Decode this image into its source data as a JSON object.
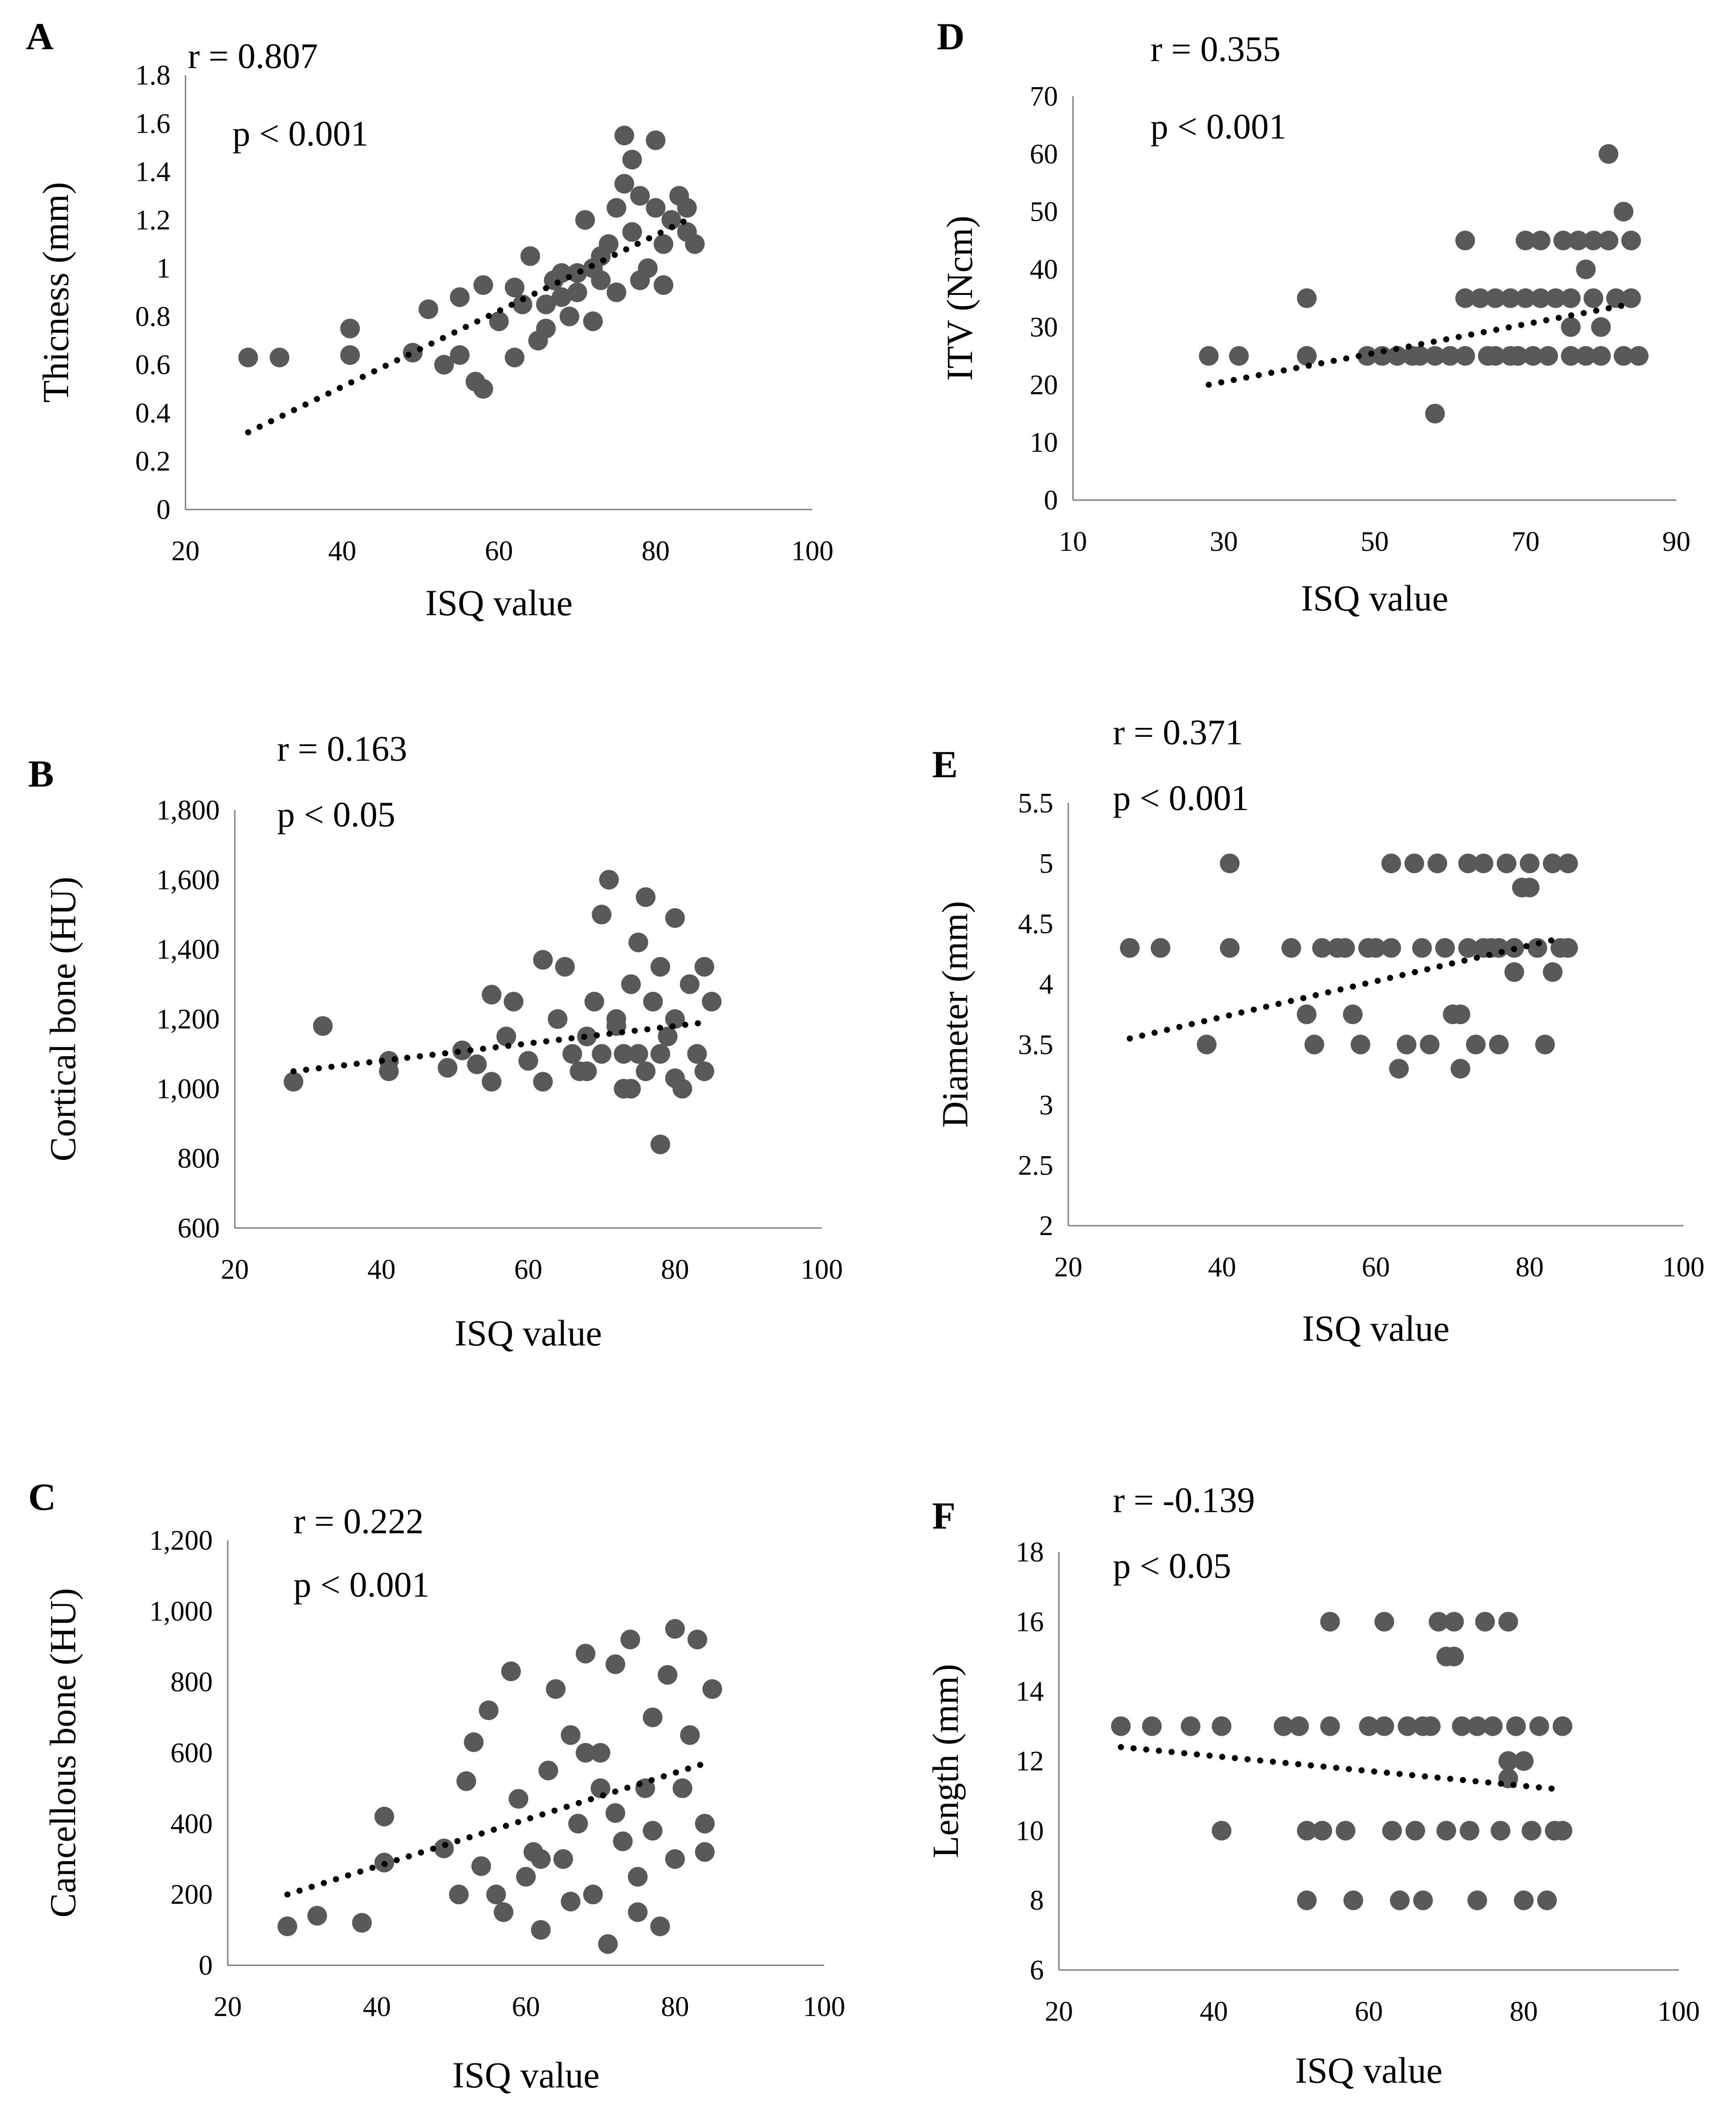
{
  "chart_data": [
    {
      "id": "A",
      "type": "scatter",
      "panel_label": "A",
      "stats": [
        "r = 0.807",
        "p < 0.001"
      ],
      "xlabel": "ISQ value",
      "ylabel": "Thicness (mm)",
      "xlim": [
        20,
        100
      ],
      "ylim": [
        0,
        1.8
      ],
      "xticks": [
        20,
        40,
        60,
        80,
        100
      ],
      "xtick_labels": [
        "20",
        "40",
        "60",
        "80",
        "100"
      ],
      "yticks": [
        0,
        0.2,
        0.4,
        0.6,
        0.8,
        1,
        1.2,
        1.4,
        1.6,
        1.8
      ],
      "ytick_labels": [
        "0",
        "0.2",
        "0.4",
        "0.6",
        "0.8",
        "1",
        "1.2",
        "1.4",
        "1.6",
        "1.8"
      ],
      "trendline": {
        "x": [
          28,
          84
        ],
        "y": [
          0.32,
          1.2
        ]
      },
      "points": [
        [
          28,
          0.63
        ],
        [
          32,
          0.63
        ],
        [
          41,
          0.75
        ],
        [
          41,
          0.64
        ],
        [
          49,
          0.65
        ],
        [
          51,
          0.83
        ],
        [
          53,
          0.6
        ],
        [
          55,
          0.88
        ],
        [
          55,
          0.64
        ],
        [
          57,
          0.53
        ],
        [
          58,
          0.5
        ],
        [
          58,
          0.93
        ],
        [
          60,
          0.78
        ],
        [
          62,
          0.63
        ],
        [
          62,
          0.92
        ],
        [
          64,
          1.05
        ],
        [
          65,
          0.7
        ],
        [
          66,
          0.85
        ],
        [
          67,
          0.95
        ],
        [
          68,
          0.98
        ],
        [
          69,
          0.8
        ],
        [
          70,
          0.9
        ],
        [
          71,
          1.2
        ],
        [
          72,
          0.78
        ],
        [
          73,
          1.05
        ],
        [
          73,
          0.95
        ],
        [
          74,
          1.1
        ],
        [
          75,
          1.25
        ],
        [
          75,
          0.9
        ],
        [
          76,
          1.35
        ],
        [
          76,
          1.55
        ],
        [
          77,
          1.45
        ],
        [
          77,
          1.15
        ],
        [
          78,
          1.3
        ],
        [
          78,
          0.95
        ],
        [
          79,
          1.0
        ],
        [
          80,
          1.53
        ],
        [
          80,
          1.25
        ],
        [
          81,
          0.93
        ],
        [
          81,
          1.1
        ],
        [
          82,
          1.2
        ],
        [
          83,
          1.3
        ],
        [
          84,
          1.15
        ],
        [
          85,
          1.1
        ],
        [
          84,
          1.25
        ],
        [
          70,
          0.98
        ],
        [
          72,
          1.0
        ],
        [
          68,
          0.88
        ],
        [
          66,
          0.75
        ],
        [
          63,
          0.85
        ]
      ]
    },
    {
      "id": "B",
      "type": "scatter",
      "panel_label": "B",
      "stats": [
        "r = 0.163",
        "p < 0.05"
      ],
      "xlabel": "ISQ value",
      "ylabel": "Cortical bone (HU)",
      "xlim": [
        20,
        100
      ],
      "ylim": [
        600,
        1800
      ],
      "xticks": [
        20,
        40,
        60,
        80,
        100
      ],
      "xtick_labels": [
        "20",
        "40",
        "60",
        "80",
        "100"
      ],
      "yticks": [
        600,
        800,
        1000,
        1200,
        1400,
        1600,
        1800
      ],
      "ytick_labels": [
        "600",
        "800",
        "1,000",
        "1,200",
        "1,400",
        "1,600",
        "1,800"
      ],
      "trendline": {
        "x": [
          28,
          84
        ],
        "y": [
          1050,
          1190
        ]
      },
      "points": [
        [
          28,
          1020
        ],
        [
          32,
          1180
        ],
        [
          41,
          1080
        ],
        [
          41,
          1050
        ],
        [
          49,
          1060
        ],
        [
          51,
          1110
        ],
        [
          53,
          1070
        ],
        [
          55,
          1270
        ],
        [
          55,
          1020
        ],
        [
          57,
          1150
        ],
        [
          58,
          1250
        ],
        [
          60,
          1080
        ],
        [
          62,
          1020
        ],
        [
          62,
          1370
        ],
        [
          64,
          1200
        ],
        [
          65,
          1350
        ],
        [
          66,
          1100
        ],
        [
          67,
          1050
        ],
        [
          68,
          1150
        ],
        [
          69,
          1250
        ],
        [
          70,
          1500
        ],
        [
          71,
          1600
        ],
        [
          72,
          1200
        ],
        [
          73,
          1100
        ],
        [
          73,
          1000
        ],
        [
          74,
          1300
        ],
        [
          75,
          1420
        ],
        [
          75,
          1100
        ],
        [
          76,
          1550
        ],
        [
          76,
          1050
        ],
        [
          77,
          1250
        ],
        [
          78,
          840
        ],
        [
          78,
          1350
        ],
        [
          79,
          1150
        ],
        [
          80,
          1490
        ],
        [
          80,
          1200
        ],
        [
          81,
          1000
        ],
        [
          82,
          1300
        ],
        [
          83,
          1100
        ],
        [
          84,
          1050
        ],
        [
          85,
          1250
        ],
        [
          84,
          1350
        ],
        [
          70,
          1100
        ],
        [
          72,
          1180
        ],
        [
          68,
          1050
        ],
        [
          74,
          1000
        ],
        [
          78,
          1100
        ],
        [
          80,
          1030
        ]
      ]
    },
    {
      "id": "C",
      "type": "scatter",
      "panel_label": "C",
      "stats": [
        "r = 0.222",
        "p < 0.001"
      ],
      "xlabel": "ISQ value",
      "ylabel": "Cancellous bone (HU)",
      "xlim": [
        20,
        100
      ],
      "ylim": [
        0,
        1200
      ],
      "xticks": [
        20,
        40,
        60,
        80,
        100
      ],
      "xtick_labels": [
        "20",
        "40",
        "60",
        "80",
        "100"
      ],
      "yticks": [
        0,
        200,
        400,
        600,
        800,
        1000,
        1200
      ],
      "ytick_labels": [
        "0",
        "200",
        "400",
        "600",
        "800",
        "1,000",
        "1,200"
      ],
      "trendline": {
        "x": [
          28,
          84
        ],
        "y": [
          200,
          570
        ]
      },
      "points": [
        [
          28,
          110
        ],
        [
          32,
          140
        ],
        [
          38,
          120
        ],
        [
          41,
          420
        ],
        [
          41,
          290
        ],
        [
          49,
          330
        ],
        [
          51,
          200
        ],
        [
          52,
          520
        ],
        [
          53,
          630
        ],
        [
          54,
          280
        ],
        [
          55,
          720
        ],
        [
          56,
          200
        ],
        [
          57,
          150
        ],
        [
          58,
          830
        ],
        [
          59,
          470
        ],
        [
          60,
          250
        ],
        [
          61,
          320
        ],
        [
          62,
          100
        ],
        [
          63,
          550
        ],
        [
          64,
          780
        ],
        [
          65,
          300
        ],
        [
          66,
          650
        ],
        [
          67,
          400
        ],
        [
          68,
          880
        ],
        [
          69,
          200
        ],
        [
          70,
          600
        ],
        [
          71,
          60
        ],
        [
          72,
          850
        ],
        [
          73,
          350
        ],
        [
          74,
          920
        ],
        [
          75,
          150
        ],
        [
          76,
          500
        ],
        [
          77,
          700
        ],
        [
          78,
          110
        ],
        [
          79,
          820
        ],
        [
          80,
          950
        ],
        [
          80,
          300
        ],
        [
          81,
          500
        ],
        [
          82,
          650
        ],
        [
          83,
          920
        ],
        [
          84,
          400
        ],
        [
          85,
          780
        ],
        [
          84,
          320
        ],
        [
          70,
          500
        ],
        [
          72,
          430
        ],
        [
          68,
          600
        ],
        [
          75,
          250
        ],
        [
          66,
          180
        ],
        [
          62,
          300
        ],
        [
          77,
          380
        ]
      ]
    },
    {
      "id": "D",
      "type": "scatter",
      "panel_label": "D",
      "stats": [
        "r = 0.355",
        "p < 0.001"
      ],
      "xlabel": "ISQ value",
      "ylabel": "ITV (Ncm)",
      "xlim": [
        10,
        90
      ],
      "ylim": [
        0,
        70
      ],
      "xticks": [
        10,
        30,
        50,
        70,
        90
      ],
      "xtick_labels": [
        "10",
        "30",
        "50",
        "70",
        "90"
      ],
      "yticks": [
        0,
        10,
        20,
        30,
        40,
        50,
        60,
        70
      ],
      "ytick_labels": [
        "0",
        "10",
        "20",
        "30",
        "40",
        "50",
        "60",
        "70"
      ],
      "trendline": {
        "x": [
          28,
          84
        ],
        "y": [
          20,
          34
        ]
      },
      "points": [
        [
          28,
          25
        ],
        [
          32,
          25
        ],
        [
          41,
          35
        ],
        [
          41,
          25
        ],
        [
          49,
          25
        ],
        [
          51,
          25
        ],
        [
          53,
          25
        ],
        [
          55,
          25
        ],
        [
          58,
          15
        ],
        [
          60,
          25
        ],
        [
          62,
          25
        ],
        [
          62,
          45
        ],
        [
          62,
          35
        ],
        [
          64,
          35
        ],
        [
          65,
          25
        ],
        [
          66,
          35
        ],
        [
          68,
          35
        ],
        [
          68,
          25
        ],
        [
          70,
          45
        ],
        [
          70,
          35
        ],
        [
          71,
          25
        ],
        [
          72,
          45
        ],
        [
          72,
          35
        ],
        [
          73,
          25
        ],
        [
          74,
          35
        ],
        [
          75,
          45
        ],
        [
          76,
          30
        ],
        [
          76,
          35
        ],
        [
          76,
          25
        ],
        [
          77,
          45
        ],
        [
          78,
          40
        ],
        [
          78,
          25
        ],
        [
          79,
          45
        ],
        [
          79,
          35
        ],
        [
          80,
          30
        ],
        [
          80,
          25
        ],
        [
          81,
          60
        ],
        [
          81,
          45
        ],
        [
          82,
          35
        ],
        [
          83,
          50
        ],
        [
          83,
          25
        ],
        [
          84,
          45
        ],
        [
          84,
          35
        ],
        [
          85,
          25
        ],
        [
          56,
          25
        ],
        [
          58,
          25
        ],
        [
          66,
          25
        ],
        [
          69,
          25
        ]
      ]
    },
    {
      "id": "E",
      "type": "scatter",
      "panel_label": "E",
      "stats": [
        "r = 0.371",
        "p < 0.001"
      ],
      "xlabel": "ISQ value",
      "ylabel": "Diameter (mm)",
      "xlim": [
        20,
        100
      ],
      "ylim": [
        2,
        5.5
      ],
      "xticks": [
        20,
        40,
        60,
        80,
        100
      ],
      "xtick_labels": [
        "20",
        "40",
        "60",
        "80",
        "100"
      ],
      "yticks": [
        2,
        2.5,
        3,
        3.5,
        4,
        4.5,
        5,
        5.5
      ],
      "ytick_labels": [
        "2",
        "2.5",
        "3",
        "3.5",
        "4",
        "4.5",
        "5",
        "5.5"
      ],
      "trendline": {
        "x": [
          28,
          84
        ],
        "y": [
          3.55,
          4.38
        ]
      },
      "points": [
        [
          28,
          4.3
        ],
        [
          32,
          4.3
        ],
        [
          38,
          3.5
        ],
        [
          41,
          5.0
        ],
        [
          41,
          4.3
        ],
        [
          49,
          4.3
        ],
        [
          51,
          3.75
        ],
        [
          52,
          3.5
        ],
        [
          53,
          4.3
        ],
        [
          55,
          4.3
        ],
        [
          57,
          3.75
        ],
        [
          58,
          3.5
        ],
        [
          60,
          4.3
        ],
        [
          62,
          5.0
        ],
        [
          62,
          4.3
        ],
        [
          63,
          3.3
        ],
        [
          64,
          3.5
        ],
        [
          65,
          5.0
        ],
        [
          66,
          4.3
        ],
        [
          67,
          3.5
        ],
        [
          68,
          5.0
        ],
        [
          69,
          4.3
        ],
        [
          70,
          3.75
        ],
        [
          71,
          3.75
        ],
        [
          71,
          3.3
        ],
        [
          72,
          5.0
        ],
        [
          72,
          4.3
        ],
        [
          73,
          3.5
        ],
        [
          74,
          5.0
        ],
        [
          75,
          4.3
        ],
        [
          76,
          3.5
        ],
        [
          77,
          5.0
        ],
        [
          78,
          4.3
        ],
        [
          78,
          4.1
        ],
        [
          79,
          4.8
        ],
        [
          80,
          4.8
        ],
        [
          80,
          5.0
        ],
        [
          81,
          4.3
        ],
        [
          82,
          3.5
        ],
        [
          83,
          4.1
        ],
        [
          83,
          5.0
        ],
        [
          84,
          4.3
        ],
        [
          85,
          5.0
        ],
        [
          85,
          4.3
        ],
        [
          56,
          4.3
        ],
        [
          59,
          4.3
        ],
        [
          74,
          4.3
        ],
        [
          76,
          4.3
        ]
      ]
    },
    {
      "id": "F",
      "type": "scatter",
      "panel_label": "F",
      "stats": [
        "r = -0.139",
        "p < 0.05"
      ],
      "xlabel": "ISQ value",
      "ylabel": "Length (mm)",
      "xlim": [
        20,
        100
      ],
      "ylim": [
        6,
        18
      ],
      "xticks": [
        20,
        40,
        60,
        80,
        100
      ],
      "xtick_labels": [
        "20",
        "40",
        "60",
        "80",
        "100"
      ],
      "yticks": [
        6,
        8,
        10,
        12,
        14,
        16,
        18
      ],
      "ytick_labels": [
        "6",
        "8",
        "10",
        "12",
        "14",
        "16",
        "18"
      ],
      "trendline": {
        "x": [
          28,
          84
        ],
        "y": [
          12.4,
          11.2
        ]
      },
      "points": [
        [
          28,
          13
        ],
        [
          32,
          13
        ],
        [
          37,
          13
        ],
        [
          41,
          13
        ],
        [
          41,
          10
        ],
        [
          49,
          13
        ],
        [
          51,
          13
        ],
        [
          52,
          10
        ],
        [
          52,
          8
        ],
        [
          54,
          10
        ],
        [
          55,
          13
        ],
        [
          55,
          16
        ],
        [
          57,
          10
        ],
        [
          58,
          8
        ],
        [
          60,
          13
        ],
        [
          62,
          16
        ],
        [
          62,
          13
        ],
        [
          63,
          10
        ],
        [
          64,
          8
        ],
        [
          65,
          13
        ],
        [
          66,
          10
        ],
        [
          67,
          8
        ],
        [
          68,
          13
        ],
        [
          69,
          16
        ],
        [
          70,
          15
        ],
        [
          71,
          15
        ],
        [
          71,
          16
        ],
        [
          72,
          13
        ],
        [
          73,
          10
        ],
        [
          74,
          8
        ],
        [
          75,
          16
        ],
        [
          76,
          13
        ],
        [
          77,
          10
        ],
        [
          78,
          16
        ],
        [
          78,
          11.5
        ],
        [
          78,
          12
        ],
        [
          79,
          13
        ],
        [
          80,
          12
        ],
        [
          80,
          8
        ],
        [
          81,
          10
        ],
        [
          82,
          13
        ],
        [
          83,
          8
        ],
        [
          84,
          10
        ],
        [
          85,
          13
        ],
        [
          85,
          10
        ],
        [
          70,
          10
        ],
        [
          74,
          13
        ],
        [
          67,
          13
        ]
      ]
    }
  ]
}
